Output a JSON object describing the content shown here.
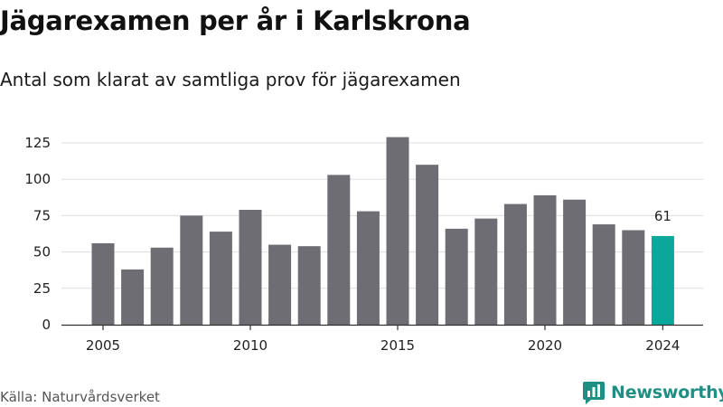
{
  "title": "Jägarexamen per år i Karlskrona",
  "subtitle": "Antal som klarat av samtliga prov för jägarexamen",
  "source": "Källa: Naturvårdsverket",
  "brand": {
    "name": "Newsworthy",
    "icon": "newsworthy-logo-icon",
    "color": "#1f8f84"
  },
  "colors": {
    "bar": "#6e6d73",
    "highlight": "#0aa89a",
    "grid": "#dddddd",
    "axis": "#333333"
  },
  "chart_data": {
    "type": "bar",
    "title": "Jägarexamen per år i Karlskrona",
    "subtitle": "Antal som klarat av samtliga prov för jägarexamen",
    "xlabel": "",
    "ylabel": "",
    "x": [
      2005,
      2006,
      2007,
      2008,
      2009,
      2010,
      2011,
      2012,
      2013,
      2014,
      2015,
      2016,
      2017,
      2018,
      2019,
      2020,
      2021,
      2022,
      2023,
      2024
    ],
    "values": [
      56,
      38,
      53,
      75,
      64,
      79,
      55,
      54,
      103,
      78,
      129,
      110,
      66,
      73,
      83,
      89,
      86,
      69,
      65,
      61
    ],
    "ylim": [
      0,
      130
    ],
    "yticks": [
      0,
      25,
      50,
      75,
      100,
      125
    ],
    "xticks": [
      2005,
      2010,
      2015,
      2020,
      2024
    ],
    "highlight": {
      "x": 2024,
      "label": "61"
    },
    "grid": true,
    "legend": "none"
  }
}
